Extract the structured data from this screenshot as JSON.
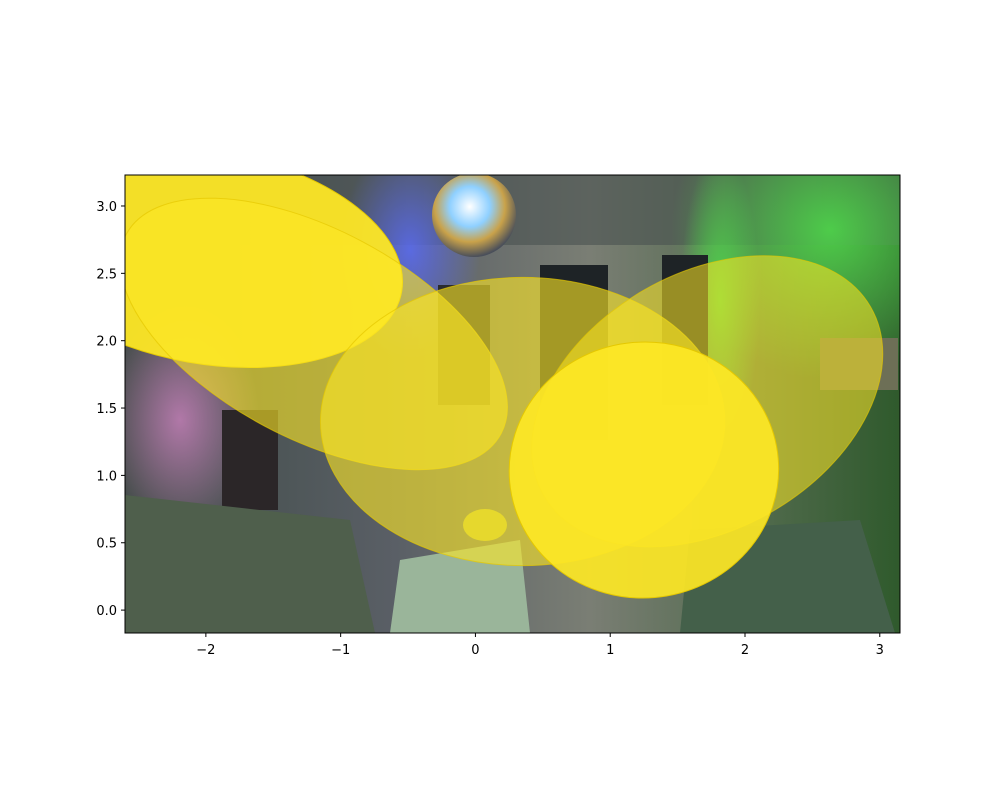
{
  "chart_data": {
    "type": "scatter",
    "title": "",
    "xlabel": "",
    "ylabel": "",
    "xlim": [
      -2.6,
      3.15
    ],
    "ylim": [
      -0.17,
      3.23
    ],
    "grid": false,
    "legend": "none",
    "background": "photograph of a dimly lit living room with colored party lights and a disco ball",
    "x_ticks": [
      {
        "value": -2,
        "label": "−2"
      },
      {
        "value": -1,
        "label": "−1"
      },
      {
        "value": 0,
        "label": "0"
      },
      {
        "value": 1,
        "label": "1"
      },
      {
        "value": 2,
        "label": "2"
      },
      {
        "value": 3,
        "label": "3"
      }
    ],
    "y_ticks": [
      {
        "value": 0.0,
        "label": "0.0"
      },
      {
        "value": 0.5,
        "label": "0.5"
      },
      {
        "value": 1.0,
        "label": "1.0"
      },
      {
        "value": 1.5,
        "label": "1.5"
      },
      {
        "value": 2.0,
        "label": "2.0"
      },
      {
        "value": 2.5,
        "label": "2.5"
      },
      {
        "value": 3.0,
        "label": "3.0"
      }
    ],
    "ellipses": [
      {
        "cx": -2.0,
        "cy": 2.62,
        "width": 2.95,
        "height": 1.58,
        "angle_deg": -10,
        "alpha": 0.95
      },
      {
        "cx": -1.2,
        "cy": 2.05,
        "width": 3.15,
        "height": 1.55,
        "angle_deg": -28,
        "alpha": 0.6
      },
      {
        "cx": 0.35,
        "cy": 1.4,
        "width": 3.0,
        "height": 2.14,
        "angle_deg": 0,
        "alpha": 0.6
      },
      {
        "cx": 1.72,
        "cy": 1.55,
        "width": 2.8,
        "height": 1.9,
        "angle_deg": 30,
        "alpha": 0.55
      },
      {
        "cx": 1.25,
        "cy": 1.04,
        "width": 2.0,
        "height": 1.9,
        "angle_deg": 5,
        "alpha": 0.92
      }
    ],
    "colors": {
      "ellipse_fill": "#fde725",
      "ellipse_edge": "#e5c800",
      "frame": "#000000"
    }
  }
}
